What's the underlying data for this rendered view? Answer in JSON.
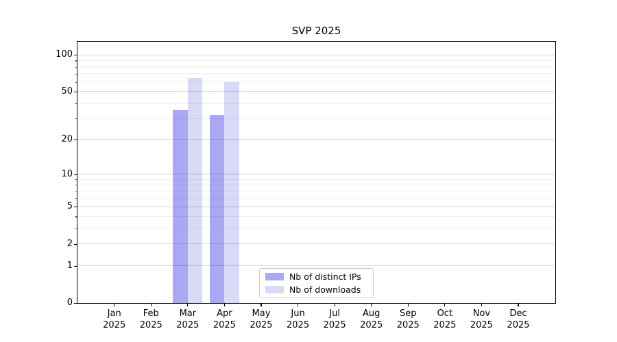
{
  "chart_data": {
    "type": "bar",
    "title": "SVP 2025",
    "categories": [
      "Jan 2025",
      "Feb 2025",
      "Mar 2025",
      "Apr 2025",
      "May 2025",
      "Jun 2025",
      "Jul 2025",
      "Aug 2025",
      "Sep 2025",
      "Oct 2025",
      "Nov 2025",
      "Dec 2025"
    ],
    "series": [
      {
        "name": "Nb of distinct IPs",
        "color": "#a8a8f5",
        "values": [
          0,
          0,
          35,
          32,
          0,
          0,
          0,
          0,
          0,
          0,
          0,
          0
        ]
      },
      {
        "name": "Nb of downloads",
        "color": "#d9d9f8",
        "values": [
          0,
          0,
          65,
          60,
          0,
          0,
          0,
          0,
          0,
          0,
          0,
          0
        ]
      }
    ],
    "xlabel": "",
    "ylabel": "",
    "y_scale": "log1p",
    "y_ticks": [
      0,
      1,
      2,
      5,
      10,
      20,
      50,
      100
    ],
    "y_minor_gridlines": [
      3,
      4,
      6,
      7,
      8,
      9,
      30,
      40,
      60,
      70,
      80,
      90
    ],
    "ylim": [
      0,
      128
    ],
    "grid": "horizontal",
    "legend_position": "lower center",
    "bar_group_width_fraction": 0.8
  }
}
